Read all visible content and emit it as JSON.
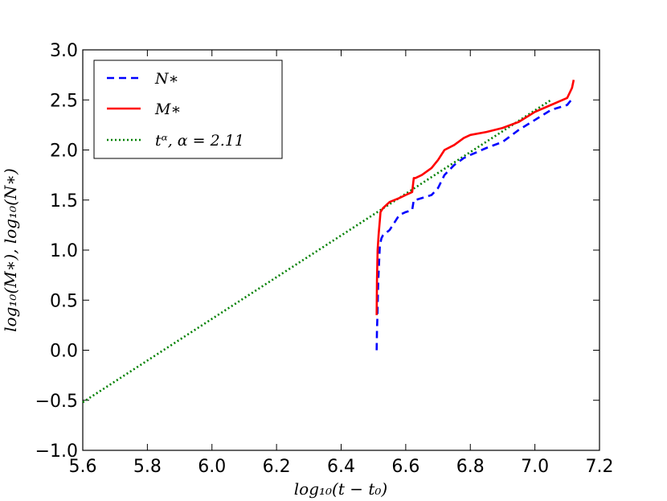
{
  "chart_data": {
    "type": "line",
    "xlabel": "log₁₀(t − t₀)",
    "ylabel": "log₁₀(M∗), log₁₀(N∗)",
    "xlim": [
      5.6,
      7.2
    ],
    "ylim": [
      -1.0,
      3.0
    ],
    "xticks": [
      5.6,
      5.8,
      6.0,
      6.2,
      6.4,
      6.6,
      6.8,
      7.0,
      7.2
    ],
    "yticks": [
      -1.0,
      -0.5,
      0.0,
      0.5,
      1.0,
      1.5,
      2.0,
      2.5,
      3.0
    ],
    "xtick_labels": [
      "5.6",
      "5.8",
      "6.0",
      "6.2",
      "6.4",
      "6.6",
      "6.8",
      "7.0",
      "7.2"
    ],
    "ytick_labels": [
      "−1.0",
      "−0.5",
      "0.0",
      "0.5",
      "1.0",
      "1.5",
      "2.0",
      "2.5",
      "3.0"
    ],
    "legend_position": "top-left",
    "series": [
      {
        "name": "N∗",
        "color": "#0000ff",
        "style": "dashed",
        "x": [
          6.51,
          6.511,
          6.512,
          6.515,
          6.52,
          6.525,
          6.53,
          6.55,
          6.57,
          6.58,
          6.6,
          6.62,
          6.625,
          6.63,
          6.65,
          6.68,
          6.7,
          6.72,
          6.75,
          6.78,
          6.8,
          6.85,
          6.9,
          6.95,
          7.0,
          7.05,
          7.1,
          7.12
        ],
        "y": [
          0.0,
          0.2,
          0.3,
          0.7,
          1.05,
          1.12,
          1.15,
          1.2,
          1.3,
          1.35,
          1.38,
          1.4,
          1.5,
          1.5,
          1.52,
          1.55,
          1.62,
          1.75,
          1.85,
          1.92,
          1.95,
          2.02,
          2.08,
          2.2,
          2.3,
          2.4,
          2.45,
          2.53
        ]
      },
      {
        "name": "M∗",
        "color": "#ff0000",
        "style": "solid",
        "x": [
          6.51,
          6.511,
          6.513,
          6.516,
          6.52,
          6.522,
          6.53,
          6.55,
          6.58,
          6.6,
          6.62,
          6.625,
          6.63,
          6.65,
          6.68,
          6.7,
          6.72,
          6.75,
          6.78,
          6.8,
          6.85,
          6.9,
          6.95,
          7.0,
          7.05,
          7.1,
          7.115,
          7.12
        ],
        "y": [
          0.35,
          0.7,
          1.0,
          1.15,
          1.3,
          1.38,
          1.42,
          1.48,
          1.52,
          1.55,
          1.58,
          1.72,
          1.72,
          1.75,
          1.82,
          1.9,
          2.0,
          2.05,
          2.12,
          2.15,
          2.18,
          2.22,
          2.28,
          2.38,
          2.45,
          2.52,
          2.62,
          2.7
        ]
      },
      {
        "name": "tᵅ,  α = 2.11",
        "color": "#008000",
        "style": "dotted",
        "x": [
          5.6,
          7.05
        ],
        "y": [
          -0.52,
          2.5
        ]
      }
    ]
  }
}
